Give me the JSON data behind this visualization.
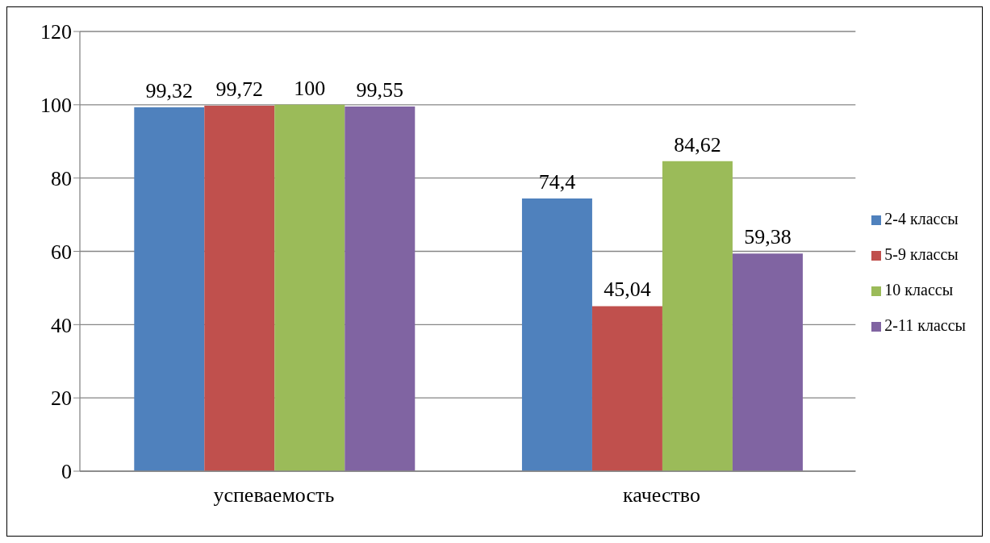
{
  "chart_data": {
    "type": "bar",
    "categories": [
      "успеваемость",
      "качество"
    ],
    "series": [
      {
        "name": "2-4 классы",
        "color": "#4f81bd",
        "values": [
          99.32,
          74.4
        ],
        "value_labels": [
          "99,32",
          "74,4"
        ]
      },
      {
        "name": "5-9 классы",
        "color": "#c0504d",
        "values": [
          99.72,
          45.04
        ],
        "value_labels": [
          "99,72",
          "45,04"
        ]
      },
      {
        "name": "10 классы",
        "color": "#9bbb59",
        "values": [
          100,
          84.62
        ],
        "value_labels": [
          "100",
          "84,62"
        ]
      },
      {
        "name": "2-11 классы",
        "color": "#8064a2",
        "values": [
          99.55,
          59.38
        ],
        "value_labels": [
          "99,55",
          "59,38"
        ]
      }
    ],
    "ylim": [
      0,
      120
    ],
    "yticks": [
      0,
      20,
      40,
      60,
      80,
      100,
      120
    ],
    "grid": "y",
    "legend": "right"
  }
}
